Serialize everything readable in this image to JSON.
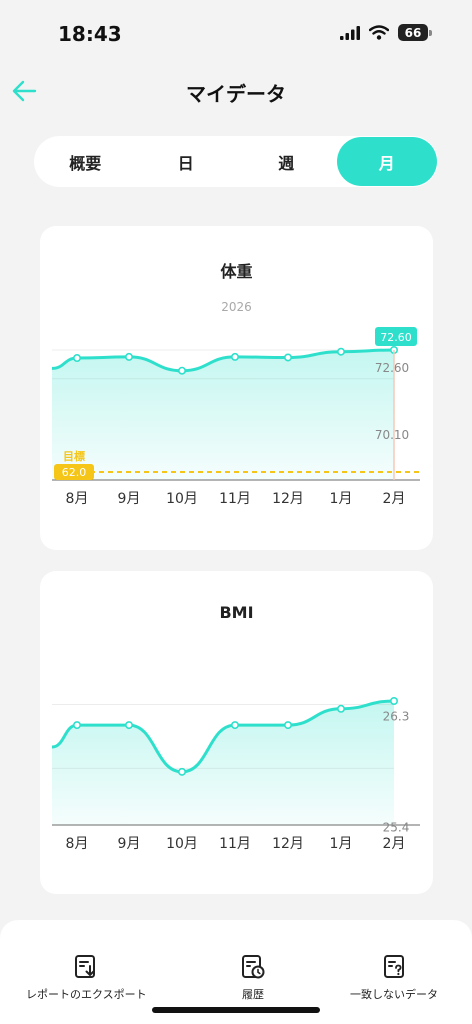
{
  "status": {
    "time": "18:43",
    "battery": "66",
    "icons": [
      "signal-icon",
      "wifi-icon",
      "battery-icon"
    ]
  },
  "header": {
    "back_icon": "arrow-left-icon",
    "title": "マイデータ"
  },
  "tabs": [
    {
      "label": "概要",
      "active": false
    },
    {
      "label": "日",
      "active": false
    },
    {
      "label": "週",
      "active": false
    },
    {
      "label": "月",
      "active": true
    }
  ],
  "colors": {
    "accent": "#2ee0cc",
    "goal": "#f5c518",
    "axis": "#888888"
  },
  "weight_card": {
    "title": "体重",
    "year": "2026",
    "goal_label": "目標"
  },
  "bmi_card": {
    "title": "BMI"
  },
  "chart_data": [
    {
      "type": "area",
      "title": "体重",
      "categories": [
        "8月",
        "9月",
        "10月",
        "11月",
        "12月",
        "1月",
        "2月"
      ],
      "series": [
        {
          "values": [
            71.9,
            72.0,
            70.8,
            72.0,
            71.95,
            72.45,
            72.6
          ]
        }
      ],
      "y_tick_labels": [
        "72.60",
        "70.10"
      ],
      "y_ticks": [
        72.6,
        70.1
      ],
      "goal": 62.0,
      "goal_value_label": "62.0",
      "highlight_label": "72.60",
      "ylim": [
        61.3,
        72.6
      ],
      "legend": "none",
      "grid": true
    },
    {
      "type": "area",
      "title": "BMI",
      "categories": [
        "8月",
        "9月",
        "10月",
        "11月",
        "12月",
        "1月",
        "2月"
      ],
      "series": [
        {
          "values": [
            26.01,
            26.01,
            25.35,
            26.01,
            26.01,
            26.24,
            26.35
          ]
        }
      ],
      "y_tick_labels": [
        "26.3",
        "25.4"
      ],
      "y_ticks": [
        26.3,
        25.4
      ],
      "ylim": [
        24.6,
        26.35
      ],
      "legend": "none",
      "grid": true
    }
  ],
  "bottom_bar": {
    "actions": [
      {
        "label": "レポートのエクスポート",
        "icon": "export-report-icon"
      },
      {
        "label": "履歴",
        "icon": "history-icon"
      },
      {
        "label": "一致しないデータ",
        "icon": "unmatched-data-icon"
      }
    ]
  }
}
